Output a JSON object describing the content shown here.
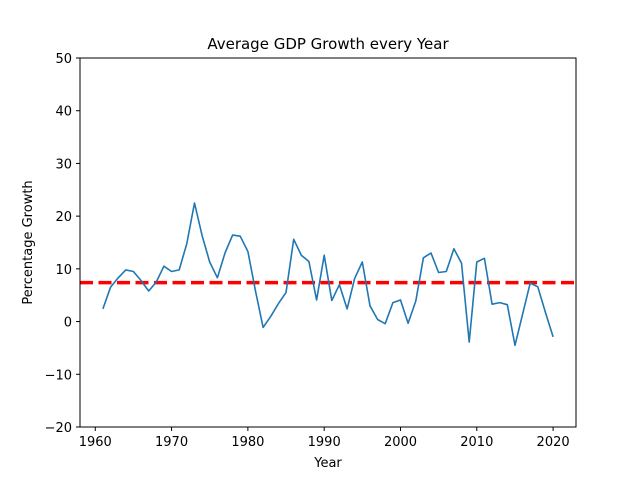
{
  "chart_data": {
    "type": "line",
    "title": "Average GDP Growth every Year",
    "xlabel": "Year",
    "ylabel": "Percentage Growth",
    "xlim": [
      1958,
      2023
    ],
    "ylim": [
      -20,
      50
    ],
    "xticks": [
      1960,
      1970,
      1980,
      1990,
      2000,
      2010,
      2020
    ],
    "yticks": [
      -20,
      -10,
      0,
      10,
      20,
      30,
      40,
      50
    ],
    "grid": false,
    "line_color": "#1f77b4",
    "reference_line": {
      "y": 7.4,
      "color": "#ff0000",
      "style": "dashed"
    },
    "series": [
      {
        "x": [
          1961,
          1962,
          1963,
          1964,
          1965,
          1966,
          1967,
          1968,
          1969,
          1970,
          1971,
          1972,
          1973,
          1974,
          1975,
          1976,
          1977,
          1978,
          1979,
          1980,
          1981,
          1982,
          1983,
          1984,
          1985,
          1986,
          1987,
          1988,
          1989,
          1990,
          1991,
          1992,
          1993,
          1994,
          1995,
          1996,
          1997,
          1998,
          1999,
          2000,
          2001,
          2002,
          2003,
          2004,
          2005,
          2006,
          2007,
          2008,
          2009,
          2010,
          2011,
          2012,
          2013,
          2014,
          2015,
          2016,
          2017,
          2018,
          2019,
          2020
        ],
        "values": [
          2.4,
          6.5,
          8.3,
          9.8,
          9.5,
          7.8,
          5.8,
          7.5,
          10.5,
          9.5,
          9.8,
          14.8,
          22.5,
          16.3,
          11.3,
          8.3,
          13.0,
          16.4,
          16.2,
          13.3,
          5.8,
          -1.1,
          1.0,
          3.4,
          5.5,
          15.6,
          12.6,
          11.4,
          4.1,
          12.6,
          4.0,
          7.0,
          2.4,
          8.2,
          11.3,
          3.0,
          0.4,
          -0.4,
          3.6,
          4.1,
          -0.3,
          3.9,
          12.1,
          13.0,
          9.3,
          9.5,
          13.8,
          11.1,
          -3.9,
          11.3,
          12.0,
          3.3,
          3.6,
          3.2,
          -4.5,
          1.4,
          7.3,
          6.6,
          1.7,
          -2.9
        ]
      }
    ]
  }
}
